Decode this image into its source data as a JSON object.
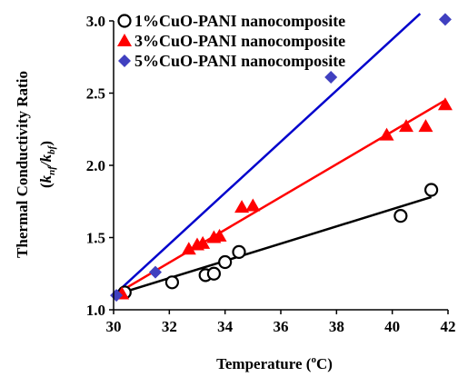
{
  "chart_data": {
    "type": "scatter",
    "xlabel": "Temperature (°C)",
    "xlabel_parts": {
      "main": "Temperature  (",
      "sup": "o",
      "tail": "C)"
    },
    "ylabel": "Thermal Conductivity Ratio (k_nf/k_bf)",
    "ylabel_parts": {
      "line1": "Thermal  Conductivity  Ratio",
      "open": "(",
      "k1": "k",
      "s1": "nf",
      "slash": "/",
      "k2": "k",
      "s2": "bf",
      "close": ")"
    },
    "xlim": [
      30,
      42
    ],
    "ylim": [
      1.0,
      3.0
    ],
    "xticks": [
      30,
      32,
      34,
      36,
      38,
      40,
      42
    ],
    "yticks": [
      1.0,
      1.5,
      2.0,
      2.5,
      3.0
    ],
    "xtick_labels": [
      "30",
      "32",
      "34",
      "36",
      "38",
      "40",
      "42"
    ],
    "ytick_labels": [
      "1.0",
      "1.5",
      "2.0",
      "2.5",
      "3.0"
    ],
    "legend_position": "top-left",
    "series": [
      {
        "name": "1%CuO-PANI nanocomposite",
        "marker": "circle",
        "marker_color": "#000000",
        "line_color": "#000000",
        "x": [
          30.4,
          32.1,
          33.3,
          33.6,
          34.0,
          34.5,
          40.3,
          41.4
        ],
        "y": [
          1.12,
          1.19,
          1.24,
          1.25,
          1.33,
          1.4,
          1.65,
          1.83
        ],
        "fit": {
          "x": [
            30.0,
            41.4
          ],
          "y": [
            1.1,
            1.78
          ]
        }
      },
      {
        "name": "3%CuO-PANI nanocomposite",
        "marker": "triangle",
        "marker_color": "#ff0000",
        "line_color": "#ff0000",
        "x": [
          30.3,
          32.7,
          33.0,
          33.2,
          33.6,
          33.8,
          34.6,
          35.0,
          39.8,
          40.5,
          41.2,
          41.9
        ],
        "y": [
          1.11,
          1.42,
          1.45,
          1.46,
          1.5,
          1.51,
          1.71,
          1.72,
          2.21,
          2.27,
          2.27,
          2.42
        ],
        "fit": {
          "x": [
            30.0,
            41.9
          ],
          "y": [
            1.1,
            2.45
          ]
        }
      },
      {
        "name": "5%CuO-PANI nanocomposite",
        "marker": "diamond",
        "marker_color": "#4040c0",
        "line_color": "#0000cc",
        "x": [
          30.1,
          31.5,
          37.8,
          41.9
        ],
        "y": [
          1.1,
          1.26,
          2.61,
          3.01
        ],
        "fit": {
          "x": [
            30.0,
            41.0
          ],
          "y": [
            1.1,
            3.05
          ]
        }
      }
    ]
  }
}
